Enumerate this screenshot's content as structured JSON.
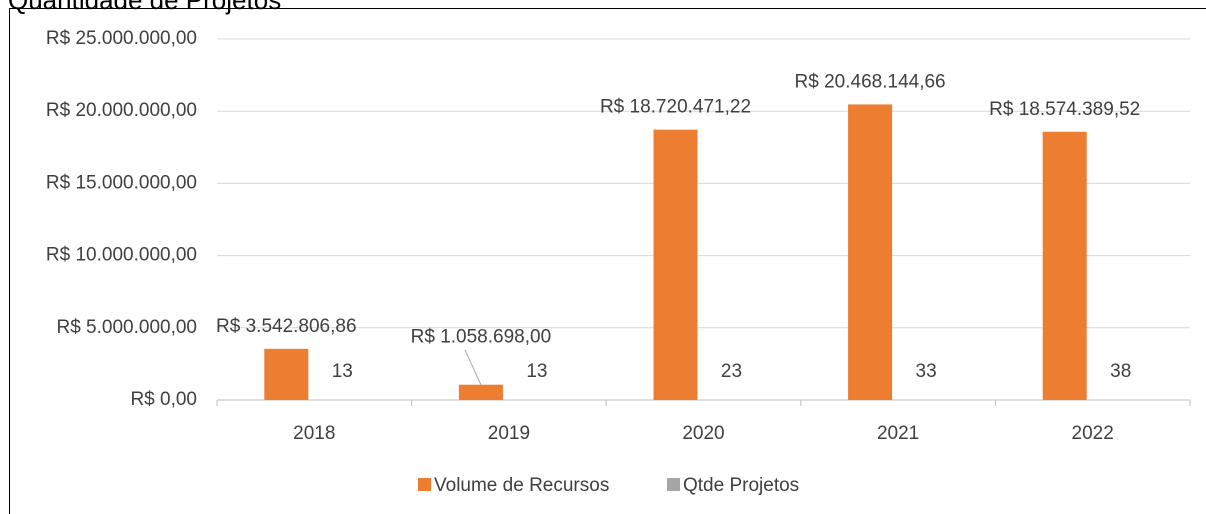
{
  "chart_data": {
    "type": "bar",
    "title": "Quantidade de Projetos",
    "categories": [
      "2018",
      "2019",
      "2020",
      "2021",
      "2022"
    ],
    "series": [
      {
        "name": "Volume de Recursos",
        "color": "#ed7d31",
        "values": [
          3542806.86,
          1058698.0,
          18720471.22,
          20468144.66,
          18574389.52
        ],
        "value_labels": [
          "R$ 3.542.806,86",
          "R$ 1.058.698,00",
          "R$ 18.720.471,22",
          "R$ 20.468.144,66",
          "R$ 18.574.389,52"
        ]
      },
      {
        "name": "Qtde Projetos",
        "color": "#a5a5a5",
        "values": [
          13,
          13,
          23,
          33,
          38
        ]
      }
    ],
    "ylim": [
      0,
      25000000
    ],
    "yticks": [
      {
        "value": 0,
        "label": "R$ 0,00"
      },
      {
        "value": 5000000,
        "label": "R$ 5.000.000,00"
      },
      {
        "value": 10000000,
        "label": "R$ 10.000.000,00"
      },
      {
        "value": 15000000,
        "label": "R$ 15.000.000,00"
      },
      {
        "value": 20000000,
        "label": "R$ 20.000.000,00"
      },
      {
        "value": 25000000,
        "label": "R$ 25.000.000,00"
      }
    ],
    "grid": true,
    "legend": "bottom"
  }
}
